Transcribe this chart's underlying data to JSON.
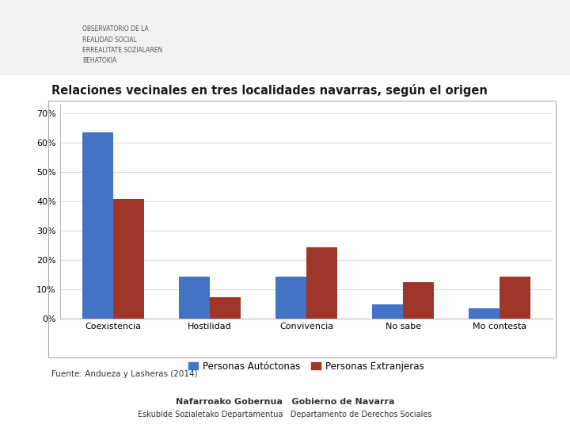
{
  "title": "Relaciones vecinales en tres localidades navarras, según el origen",
  "categories": [
    "Coexistencia",
    "Hostilidad",
    "Convivencia",
    "No sabe",
    "Mo contesta"
  ],
  "autoctona": [
    63.5,
    14.5,
    14.5,
    5.0,
    3.5
  ],
  "extranjera": [
    41.0,
    7.5,
    24.5,
    12.5,
    14.5
  ],
  "color_autoctona": "#4472C4",
  "color_extranjera": "#A0352A",
  "legend_autoctona": "Personas Autóctonas",
  "legend_extranjera": "Personas Extranjeras",
  "ylabel_ticks": [
    0,
    10,
    20,
    30,
    40,
    50,
    60,
    70
  ],
  "ylim": [
    0,
    73
  ],
  "source": "Fuente: Andueza y Lasheras (2014)",
  "bg_color": "#FFFFFF",
  "chart_bg": "#FFFFFF",
  "grid_color": "#DDDDDD",
  "bar_width": 0.32,
  "header_bg": "#F2F2F2",
  "header_text": "OBSERVATORIO DE LA\nREALIDAD SOCIAL\nERREALITATE SOZIALAREN\nBEHATOKIA",
  "header_text_color": "#555555",
  "title_fontsize": 10.5,
  "tick_fontsize": 8,
  "legend_fontsize": 8.5,
  "source_fontsize": 7.5
}
